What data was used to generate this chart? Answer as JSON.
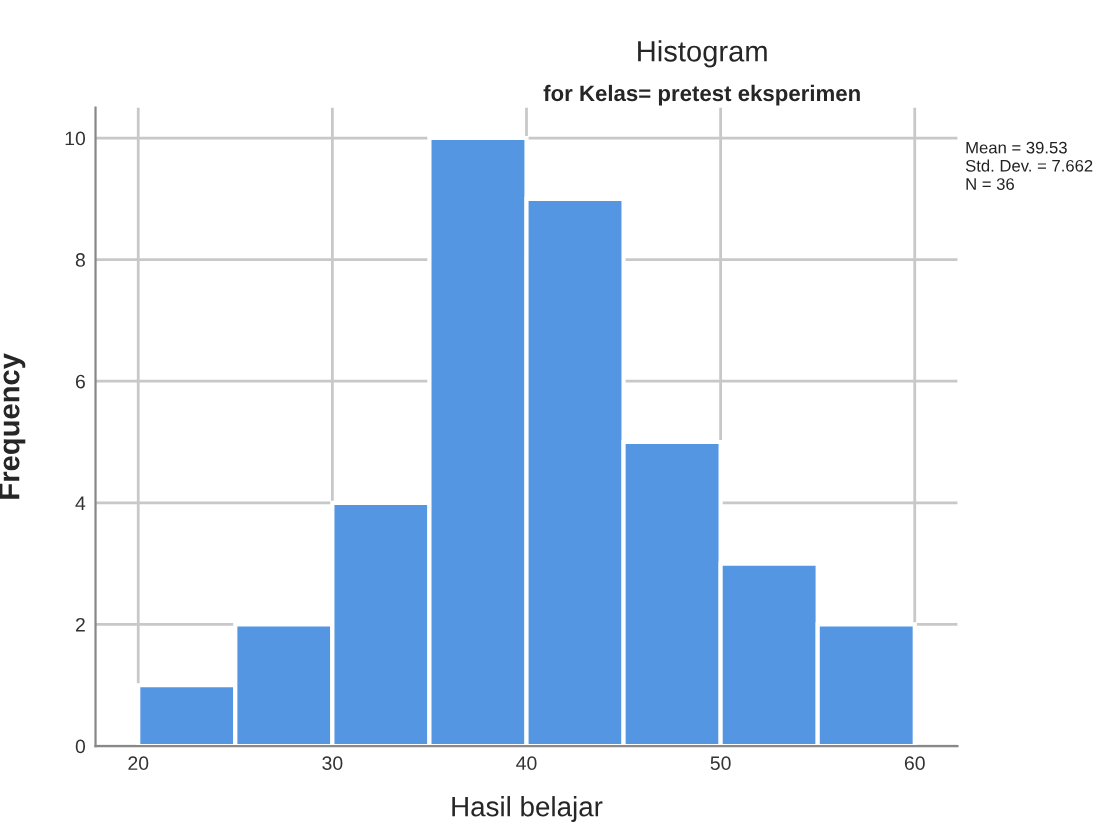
{
  "chart_data": {
    "type": "histogram",
    "title": "Histogram",
    "subtitle": "for Kelas= pretest eksperimen",
    "xlabel": "Hasil belajar",
    "ylabel": "Frequency",
    "bins": [
      20,
      25,
      30,
      35,
      40,
      45,
      50,
      55,
      60
    ],
    "values": [
      1,
      2,
      4,
      10,
      9,
      5,
      3,
      2
    ],
    "color": "#5596e3",
    "xlim": [
      17.8,
      62.2
    ],
    "xticks": [
      20,
      30,
      40,
      50,
      60
    ],
    "ylim": [
      0,
      10.5
    ],
    "yticks": [
      0,
      2,
      4,
      6,
      8,
      10
    ],
    "grid": true,
    "annotations": [
      "Mean = 39.53",
      "Std. Dev. = 7.662",
      "N = 36"
    ]
  }
}
